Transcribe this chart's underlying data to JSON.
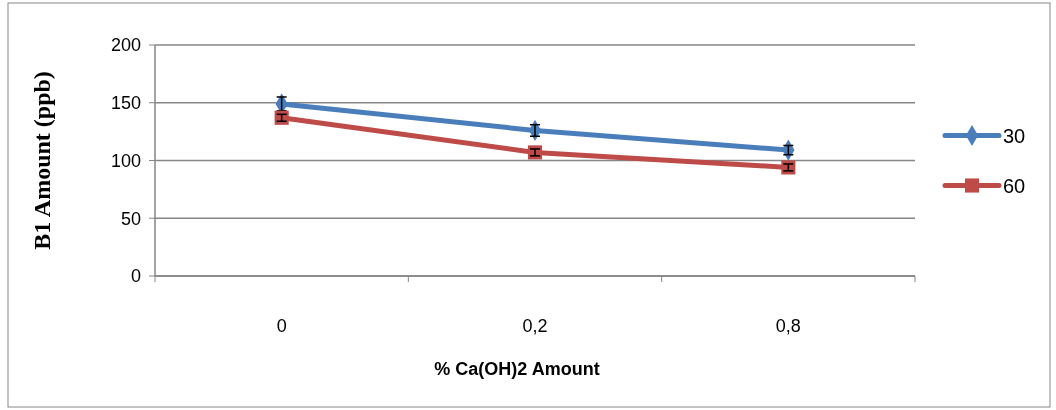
{
  "chart_data": {
    "type": "line",
    "xlabel": "% Ca(OH)2 Amount",
    "ylabel": "B1 Amount (ppb)",
    "categories": [
      "0",
      "0,2",
      "0,8"
    ],
    "series": [
      {
        "name": "30",
        "color": "#4a7ebb",
        "values": [
          149,
          126,
          109
        ],
        "errors": [
          6,
          5,
          4
        ],
        "marker": "diamond"
      },
      {
        "name": "60",
        "color": "#be4b48",
        "values": [
          137,
          107,
          94
        ],
        "errors": [
          3,
          3,
          3
        ],
        "marker": "square"
      }
    ],
    "ylim": [
      0,
      200
    ],
    "yticks": [
      0,
      50,
      100,
      150,
      200
    ],
    "grid": "y",
    "legend": "right",
    "line_style": "solid"
  }
}
